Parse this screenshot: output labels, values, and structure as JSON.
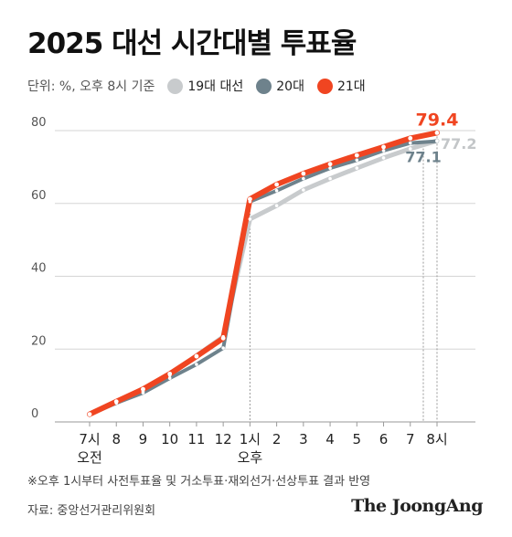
{
  "title": "2025 대선 시간대별 투표율",
  "unit_note": "단위: %, 오후 8시 기준",
  "footnote": "※오후 1시부터 사전투표율 및 거소투표·재외선거·선상투표 결과 반영",
  "source": "자료: 중앙선거관리위원회",
  "brand": "The JoongAng",
  "chart_data": {
    "type": "line",
    "title": "2025 대선 시간대별 투표율",
    "x_labels": [
      "7시",
      "8",
      "9",
      "10",
      "11",
      "12",
      "1시",
      "2",
      "3",
      "4",
      "5",
      "6",
      "7",
      "8시"
    ],
    "x_sublabels": [
      "오전",
      "",
      "",
      "",
      "",
      "",
      "오후",
      "",
      "",
      "",
      "",
      "",
      "",
      ""
    ],
    "ylim": [
      0,
      80
    ],
    "yticks": [
      0,
      20,
      40,
      60,
      80
    ],
    "grid": true,
    "legend_position": "top",
    "series": [
      {
        "name": "19대 대선",
        "color": "#c8cbcd",
        "values": [
          2.1,
          5.3,
          8.5,
          12.8,
          18.2,
          23.4,
          55.7,
          59.4,
          63.7,
          66.8,
          69.7,
          72.5,
          75.0,
          77.2
        ],
        "end_label": "77.2"
      },
      {
        "name": "20대",
        "color": "#6e828c",
        "values": [
          2.1,
          5.2,
          8.0,
          12.0,
          15.8,
          20.3,
          60.5,
          63.5,
          66.8,
          69.7,
          71.9,
          74.5,
          76.6,
          77.1
        ],
        "end_label": "77.1"
      },
      {
        "name": "21대",
        "color": "#f04521",
        "values": [
          2.1,
          5.6,
          9.0,
          13.2,
          18.0,
          23.0,
          61.2,
          65.2,
          68.2,
          70.8,
          73.2,
          75.5,
          77.9,
          79.4
        ],
        "end_label": "79.4"
      }
    ]
  }
}
